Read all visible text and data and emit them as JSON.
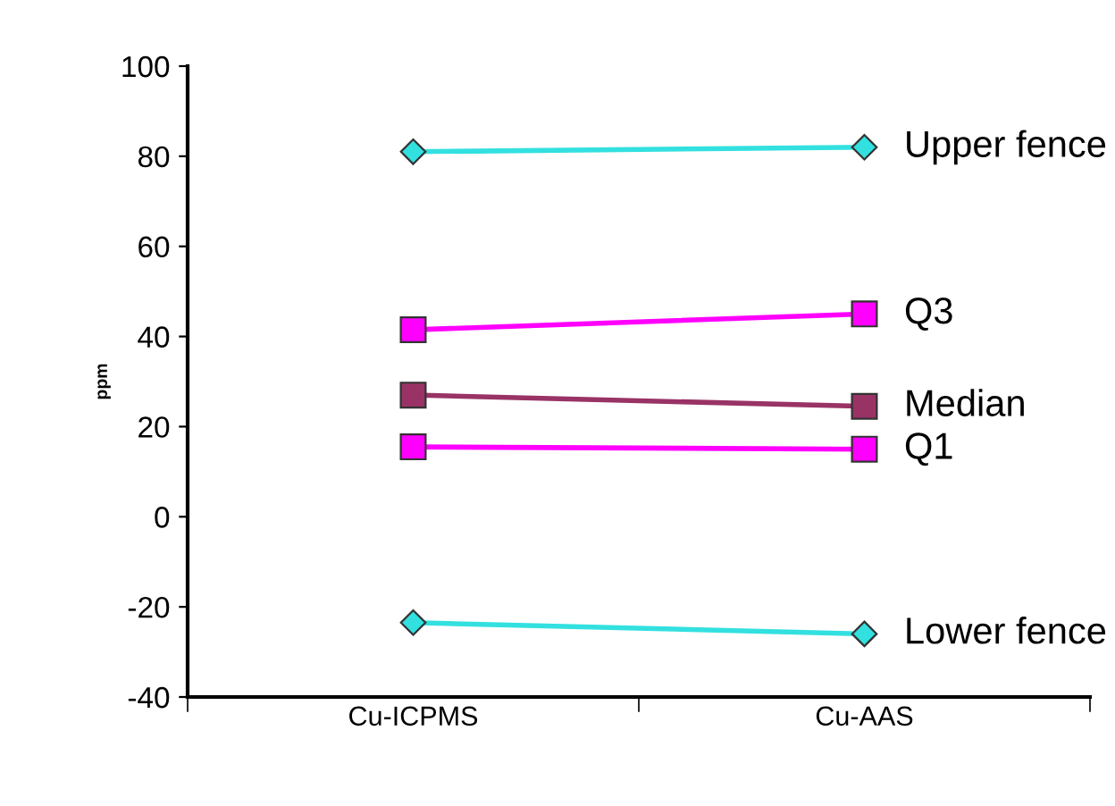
{
  "chart_data": {
    "type": "line",
    "ylabel": "ppm",
    "categories": [
      "Cu-ICPMS",
      "Cu-AAS"
    ],
    "ylim": [
      -40,
      100
    ],
    "yticks": [
      -40,
      -20,
      0,
      20,
      40,
      60,
      80,
      100
    ],
    "grid": false,
    "legend": false,
    "series": [
      {
        "name": "Upper fence",
        "color": "#33e0e0",
        "marker": "diamond",
        "values": [
          81,
          82
        ]
      },
      {
        "name": "Q3",
        "color": "#ff00ff",
        "marker": "square",
        "values": [
          41.5,
          45
        ]
      },
      {
        "name": "Median",
        "color": "#993366",
        "marker": "square",
        "values": [
          27,
          24.5
        ]
      },
      {
        "name": "Q1",
        "color": "#ff00ff",
        "marker": "square",
        "values": [
          15.5,
          15
        ]
      },
      {
        "name": "Lower fence",
        "color": "#33e0e0",
        "marker": "diamond",
        "values": [
          -23.5,
          -26
        ]
      }
    ]
  }
}
